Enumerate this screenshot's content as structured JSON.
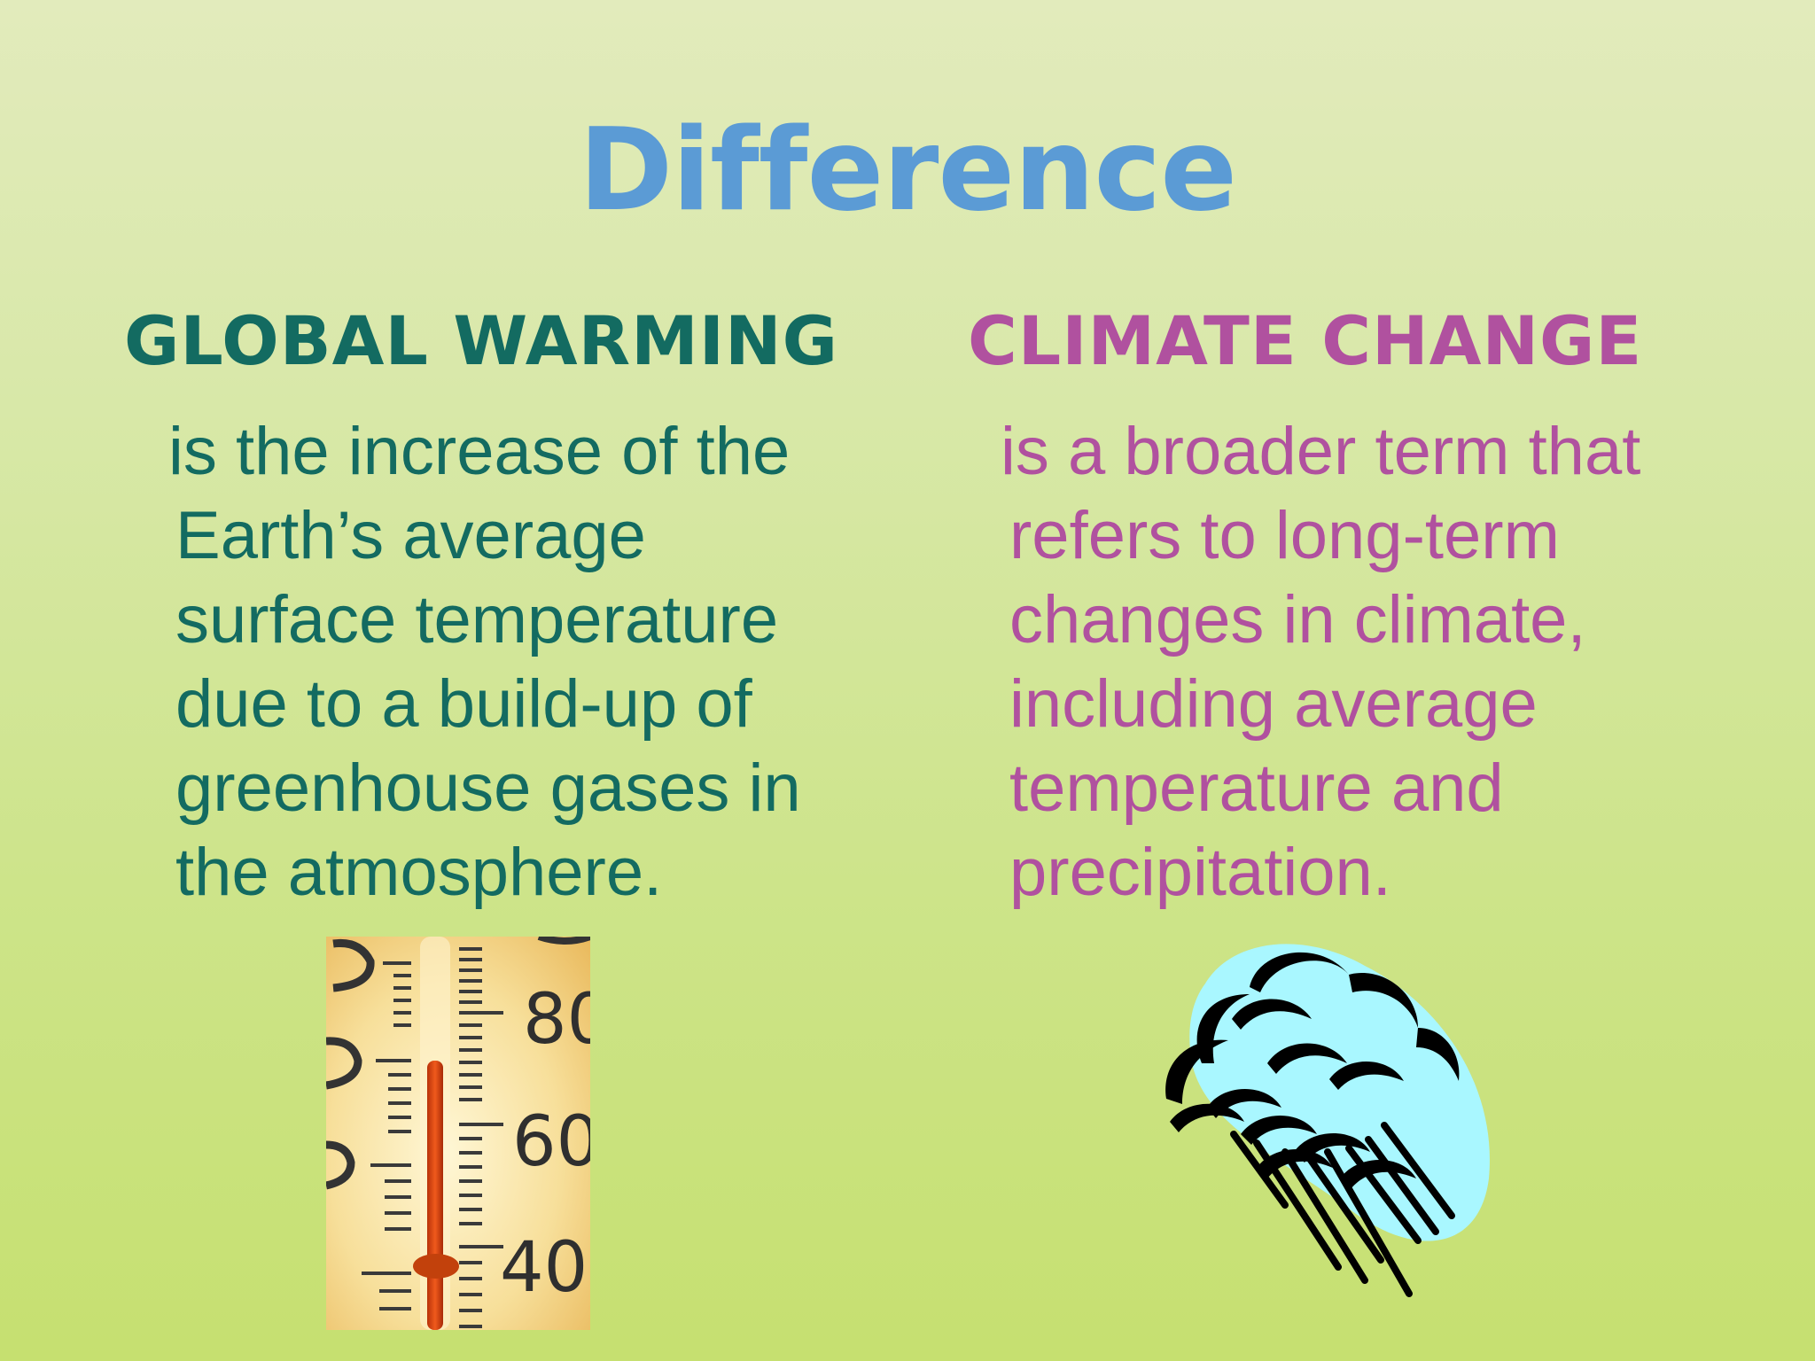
{
  "slide": {
    "title": "Difference",
    "left": {
      "heading": "GLOBAL WARMING",
      "lines": [
        "is the increase of the",
        "Earth’s average",
        "surface temperature",
        "due to a build-up of",
        "greenhouse gases in",
        "the atmosphere."
      ]
    },
    "right": {
      "heading": "CLIMATE CHANGE",
      "lines": [
        "is a broader term that",
        "refers to long-term",
        "changes in climate,",
        "including average",
        "temperature and",
        "precipitation."
      ]
    },
    "thermometer": {
      "scale_labels": [
        "80",
        "60",
        "40"
      ],
      "icon": "thermometer-image"
    },
    "cloud": {
      "icon": "rain-cloud-clipart"
    },
    "colors": {
      "title": "#5b9bd5",
      "global_warming": "#136b61",
      "climate_change": "#b0519f",
      "cloud_fill": "#a9f7ff"
    }
  }
}
